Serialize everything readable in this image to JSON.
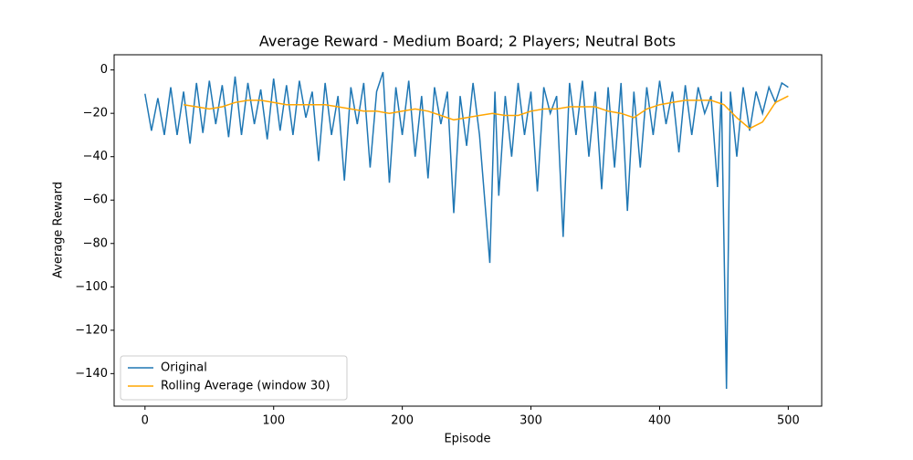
{
  "chart_data": {
    "type": "line",
    "title": "Average Reward - Medium Board; 2 Players; Neutral Bots",
    "xlabel": "Episode",
    "ylabel": "Average Reward",
    "xlim": [
      -24,
      526
    ],
    "ylim": [
      -155,
      7
    ],
    "xticks": [
      0,
      100,
      200,
      300,
      400,
      500
    ],
    "yticks": [
      {
        "value": -140,
        "label": "−140"
      },
      {
        "value": -120,
        "label": "−120"
      },
      {
        "value": -100,
        "label": "−100"
      },
      {
        "value": -80,
        "label": "−80"
      },
      {
        "value": -60,
        "label": "−60"
      },
      {
        "value": -40,
        "label": "−40"
      },
      {
        "value": -20,
        "label": "−20"
      },
      0
    ],
    "legend": "lower left",
    "series": [
      {
        "name": "Original",
        "color": "#1f77b4",
        "x": [
          0,
          5,
          10,
          15,
          20,
          25,
          30,
          35,
          40,
          45,
          50,
          55,
          60,
          65,
          70,
          75,
          80,
          85,
          90,
          95,
          100,
          105,
          110,
          115,
          120,
          125,
          130,
          135,
          140,
          145,
          150,
          155,
          160,
          165,
          170,
          175,
          180,
          185,
          190,
          195,
          200,
          205,
          210,
          215,
          220,
          225,
          230,
          235,
          240,
          245,
          250,
          255,
          260,
          268,
          272,
          275,
          280,
          285,
          290,
          295,
          300,
          305,
          310,
          315,
          320,
          325,
          330,
          335,
          340,
          345,
          350,
          355,
          360,
          365,
          370,
          375,
          380,
          385,
          390,
          395,
          400,
          405,
          410,
          415,
          420,
          425,
          430,
          435,
          440,
          445,
          448,
          452,
          455,
          460,
          465,
          470,
          475,
          480,
          485,
          490,
          495,
          500
        ],
        "values": [
          -11,
          -28,
          -13,
          -30,
          -8,
          -30,
          -10,
          -34,
          -6,
          -29,
          -5,
          -25,
          -7,
          -31,
          -3,
          -30,
          -6,
          -25,
          -9,
          -32,
          -4,
          -28,
          -7,
          -30,
          -5,
          -22,
          -10,
          -42,
          -6,
          -30,
          -12,
          -51,
          -8,
          -25,
          -6,
          -45,
          -10,
          -1,
          -52,
          -8,
          -30,
          -5,
          -40,
          -12,
          -50,
          -8,
          -25,
          -10,
          -66,
          -12,
          -35,
          -6,
          -30,
          -89,
          -10,
          -58,
          -12,
          -40,
          -6,
          -30,
          -10,
          -56,
          -8,
          -20,
          -12,
          -77,
          -6,
          -30,
          -5,
          -40,
          -10,
          -55,
          -8,
          -45,
          -6,
          -65,
          -10,
          -45,
          -8,
          -30,
          -5,
          -25,
          -10,
          -38,
          -7,
          -30,
          -8,
          -20,
          -12,
          -54,
          -10,
          -147,
          -10,
          -40,
          -8,
          -28,
          -10,
          -20,
          -8,
          -15,
          -6,
          -8
        ]
      },
      {
        "name": "Rolling Average (window 30)",
        "color": "#ffa500",
        "x": [
          30,
          40,
          50,
          60,
          70,
          80,
          90,
          100,
          110,
          120,
          130,
          140,
          150,
          160,
          170,
          180,
          190,
          200,
          210,
          220,
          230,
          240,
          250,
          260,
          270,
          280,
          290,
          300,
          310,
          320,
          330,
          340,
          350,
          360,
          370,
          380,
          390,
          400,
          410,
          420,
          430,
          440,
          450,
          460,
          470,
          480,
          490,
          500
        ],
        "values": [
          -16,
          -17,
          -18,
          -17,
          -15,
          -14,
          -14,
          -15,
          -16,
          -16,
          -16,
          -16,
          -17,
          -18,
          -19,
          -19,
          -20,
          -19,
          -18,
          -19,
          -21,
          -23,
          -22,
          -21,
          -20,
          -21,
          -21,
          -19,
          -18,
          -18,
          -17,
          -17,
          -17,
          -19,
          -20,
          -22,
          -18,
          -16,
          -15,
          -14,
          -14,
          -14,
          -16,
          -22,
          -27,
          -24,
          -15,
          -12
        ]
      }
    ]
  }
}
